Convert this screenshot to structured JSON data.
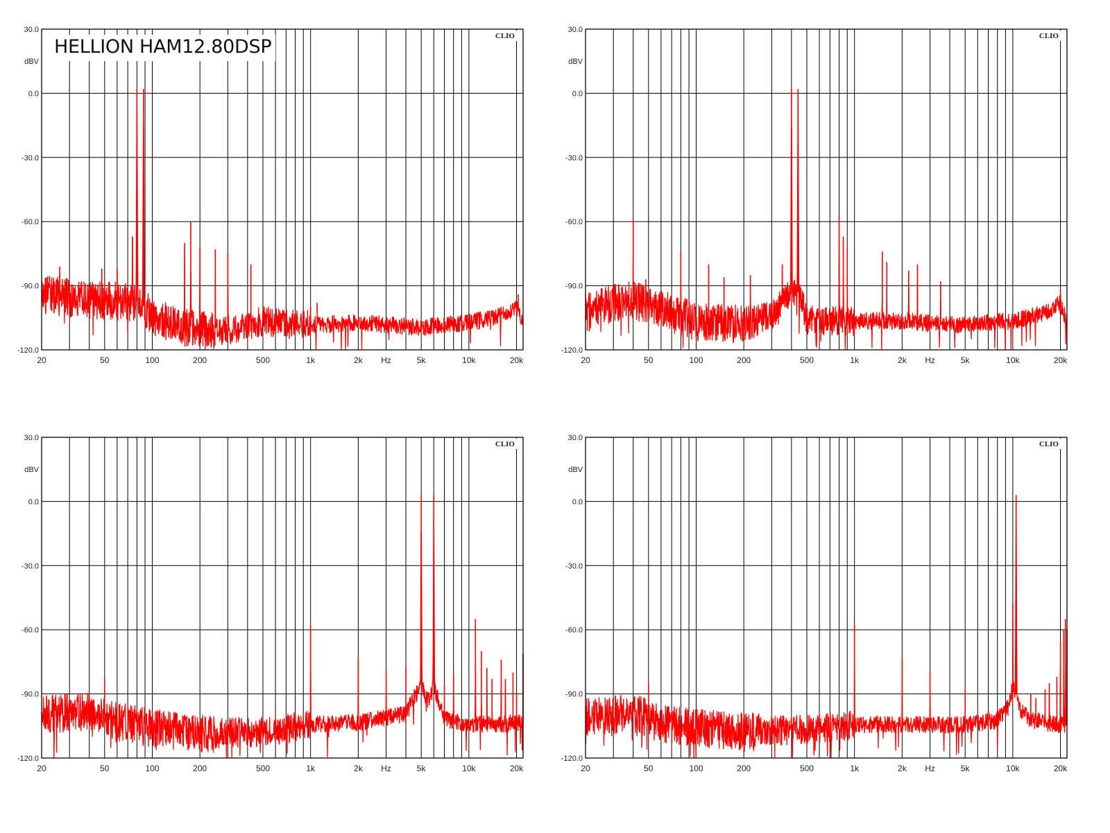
{
  "title": "HELLION HAM12.80DSP",
  "colors": {
    "trace": "#ff0000",
    "grid": "#000000",
    "background": "#ffffff",
    "text": "#222222"
  },
  "chart_data": [
    {
      "type": "line",
      "panel": "top-left",
      "watermark": "CLIO",
      "xscale": "log",
      "xlim": [
        20,
        22000
      ],
      "ylim": [
        -120,
        30
      ],
      "ylabel": "dBV",
      "xunit": "Hz",
      "grid": true,
      "ytick_labels": [
        "30.0",
        "0.0",
        "-30.0",
        "-60.0",
        "-90.0",
        "-120.0"
      ],
      "xtick_labels": [
        "20",
        "50",
        "100",
        "200",
        "500",
        "1k",
        "2k",
        "Hz",
        "5k",
        "10k",
        "20k"
      ],
      "noise_floor": [
        [
          20,
          -93
        ],
        [
          30,
          -95
        ],
        [
          50,
          -96
        ],
        [
          80,
          -97
        ],
        [
          100,
          -103
        ],
        [
          150,
          -108
        ],
        [
          200,
          -110
        ],
        [
          300,
          -110
        ],
        [
          500,
          -106
        ],
        [
          1000,
          -108
        ],
        [
          2000,
          -107
        ],
        [
          5000,
          -109
        ],
        [
          10000,
          -107
        ],
        [
          15000,
          -104
        ],
        [
          20000,
          -100
        ],
        [
          22000,
          -107
        ]
      ],
      "peaks": [
        [
          80,
          2
        ],
        [
          88,
          2
        ],
        [
          75,
          -67
        ],
        [
          60,
          -82
        ],
        [
          26,
          -81
        ],
        [
          48,
          -82
        ],
        [
          175,
          -60
        ],
        [
          160,
          -70
        ],
        [
          200,
          -72
        ],
        [
          250,
          -73
        ],
        [
          300,
          -75
        ],
        [
          420,
          -80
        ],
        [
          1000,
          -100
        ],
        [
          1100,
          -98
        ],
        [
          20500,
          -94
        ]
      ]
    },
    {
      "type": "line",
      "panel": "top-right",
      "watermark": "CLIO",
      "xscale": "log",
      "xlim": [
        20,
        22000
      ],
      "ylim": [
        -120,
        30
      ],
      "ylabel": "dBV",
      "xunit": "Hz",
      "grid": true,
      "ytick_labels": [
        "30.0",
        "0.0",
        "-30.0",
        "-60.0",
        "-90.0",
        "-120.0"
      ],
      "xtick_labels": [
        "20",
        "50",
        "100",
        "200",
        "500",
        "1k",
        "2k",
        "Hz",
        "5k",
        "10k",
        "20k"
      ],
      "noise_floor": [
        [
          20,
          -102
        ],
        [
          30,
          -97
        ],
        [
          40,
          -96
        ],
        [
          60,
          -100
        ],
        [
          100,
          -106
        ],
        [
          200,
          -107
        ],
        [
          300,
          -103
        ],
        [
          380,
          -94
        ],
        [
          450,
          -93
        ],
        [
          500,
          -105
        ],
        [
          1000,
          -106
        ],
        [
          2000,
          -106
        ],
        [
          5000,
          -108
        ],
        [
          10000,
          -106
        ],
        [
          15000,
          -103
        ],
        [
          20000,
          -98
        ],
        [
          22000,
          -106
        ]
      ],
      "peaks": [
        [
          400,
          2
        ],
        [
          440,
          2
        ],
        [
          40,
          -59
        ],
        [
          48,
          -87
        ],
        [
          80,
          -74
        ],
        [
          120,
          -80
        ],
        [
          150,
          -86
        ],
        [
          220,
          -85
        ],
        [
          350,
          -80
        ],
        [
          800,
          -58
        ],
        [
          850,
          -67
        ],
        [
          900,
          -72
        ],
        [
          1500,
          -74
        ],
        [
          1600,
          -79
        ],
        [
          2200,
          -83
        ],
        [
          2500,
          -80
        ],
        [
          3500,
          -88
        ],
        [
          20000,
          -92
        ]
      ]
    },
    {
      "type": "line",
      "panel": "bottom-left",
      "watermark": "CLIO",
      "xscale": "log",
      "xlim": [
        20,
        22000
      ],
      "ylim": [
        -120,
        30
      ],
      "ylabel": "dBV",
      "xunit": "Hz",
      "grid": true,
      "ytick_labels": [
        "30.0",
        "0.0",
        "-30.0",
        "-60.0",
        "-90.0",
        "-120.0"
      ],
      "xtick_labels": [
        "20",
        "50",
        "100",
        "200",
        "500",
        "1k",
        "2k",
        "Hz",
        "5k",
        "10k",
        "20k"
      ],
      "noise_floor": [
        [
          20,
          -99
        ],
        [
          40,
          -97
        ],
        [
          60,
          -102
        ],
        [
          100,
          -105
        ],
        [
          200,
          -108
        ],
        [
          500,
          -107
        ],
        [
          1000,
          -104
        ],
        [
          2000,
          -103
        ],
        [
          4000,
          -99
        ],
        [
          5000,
          -85
        ],
        [
          5500,
          -93
        ],
        [
          6000,
          -86
        ],
        [
          7000,
          -101
        ],
        [
          10000,
          -104
        ],
        [
          15000,
          -104
        ],
        [
          20000,
          -103
        ],
        [
          22000,
          -104
        ]
      ],
      "peaks": [
        [
          5000,
          3
        ],
        [
          6000,
          3
        ],
        [
          50,
          -83
        ],
        [
          1000,
          -58
        ],
        [
          2000,
          -73
        ],
        [
          3000,
          -79
        ],
        [
          4000,
          -77
        ],
        [
          7000,
          -86
        ],
        [
          8000,
          -81
        ],
        [
          11000,
          -55
        ],
        [
          12000,
          -70
        ],
        [
          13000,
          -78
        ],
        [
          14000,
          -83
        ],
        [
          16000,
          -74
        ],
        [
          17000,
          -83
        ],
        [
          19000,
          -80
        ],
        [
          20000,
          -90
        ],
        [
          22000,
          -71
        ]
      ]
    },
    {
      "type": "line",
      "panel": "bottom-right",
      "watermark": "CLIO",
      "xscale": "log",
      "xlim": [
        20,
        22000
      ],
      "ylim": [
        -120,
        30
      ],
      "ylabel": "dBV",
      "xunit": "Hz",
      "grid": true,
      "ytick_labels": [
        "30.0",
        "0.0",
        "-30.0",
        "-60.0",
        "-90.0",
        "-120.0"
      ],
      "xtick_labels": [
        "20",
        "50",
        "100",
        "200",
        "500",
        "1k",
        "2k",
        "Hz",
        "5k",
        "10k",
        "20k"
      ],
      "noise_floor": [
        [
          20,
          -100
        ],
        [
          40,
          -98
        ],
        [
          60,
          -103
        ],
        [
          100,
          -105
        ],
        [
          200,
          -107
        ],
        [
          500,
          -106
        ],
        [
          1000,
          -104
        ],
        [
          2000,
          -104
        ],
        [
          5000,
          -104
        ],
        [
          8000,
          -102
        ],
        [
          9500,
          -95
        ],
        [
          10000,
          -85
        ],
        [
          10500,
          -90
        ],
        [
          11000,
          -97
        ],
        [
          13000,
          -102
        ],
        [
          20000,
          -104
        ],
        [
          22000,
          -104
        ]
      ],
      "peaks": [
        [
          10500,
          3
        ],
        [
          10000,
          -48
        ],
        [
          50,
          -85
        ],
        [
          1000,
          -58
        ],
        [
          2000,
          -73
        ],
        [
          3000,
          -80
        ],
        [
          5000,
          -88
        ],
        [
          7000,
          -98
        ],
        [
          13000,
          -90
        ],
        [
          14000,
          -92
        ],
        [
          16000,
          -88
        ],
        [
          17000,
          -85
        ],
        [
          19000,
          -82
        ],
        [
          20000,
          -66
        ],
        [
          21000,
          -60
        ],
        [
          21500,
          -55
        ],
        [
          22000,
          -60
        ]
      ]
    }
  ]
}
